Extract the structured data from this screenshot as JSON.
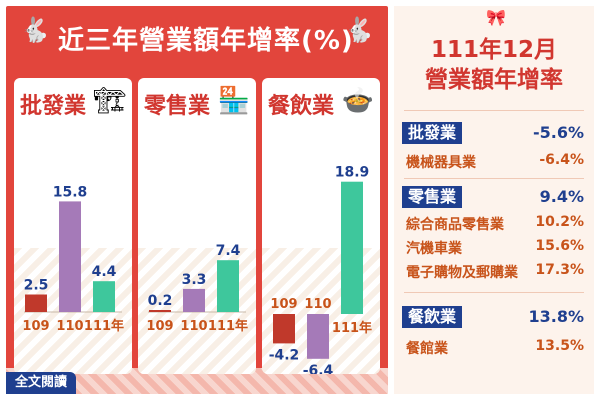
{
  "header": {
    "title": "近三年營業額年增率(%)",
    "left_icon": "rabbit-icon",
    "right_icon": "rabbit-icon"
  },
  "chart_data": [
    {
      "type": "bar",
      "title": "批發業",
      "categories": [
        "109",
        "110",
        "111年"
      ],
      "values": [
        2.5,
        15.8,
        4.4
      ],
      "colors": [
        "#c0392b",
        "#a57ab8",
        "#3ec79c"
      ]
    },
    {
      "type": "bar",
      "title": "零售業",
      "categories": [
        "109",
        "110",
        "111年"
      ],
      "values": [
        0.2,
        3.3,
        7.4
      ],
      "colors": [
        "#c0392b",
        "#a57ab8",
        "#3ec79c"
      ]
    },
    {
      "type": "bar",
      "title": "餐飲業",
      "categories": [
        "109",
        "110",
        "111年"
      ],
      "values": [
        -4.2,
        -6.4,
        18.9
      ],
      "colors": [
        "#c0392b",
        "#a57ab8",
        "#3ec79c"
      ]
    }
  ],
  "card_icons": [
    "forklift-icon",
    "storefront-icon",
    "food-bowl-icon"
  ],
  "button": {
    "label": "全文閱讀"
  },
  "right_panel": {
    "ribbon_icon": "ribbon-icon",
    "title_line1": "111年12月",
    "title_line2": "營業額年增率",
    "groups": [
      {
        "label": "批發業",
        "value": "-5.6%",
        "items": [
          {
            "label": "機械器具業",
            "value": "-6.4%"
          }
        ]
      },
      {
        "label": "零售業",
        "value": "9.4%",
        "items": [
          {
            "label": "綜合商品零售業",
            "value": "10.2%"
          },
          {
            "label": "汽機車業",
            "value": "15.6%"
          },
          {
            "label": "電子購物及郵購業",
            "value": "17.3%"
          }
        ]
      },
      {
        "label": "餐飲業",
        "value": "13.8%",
        "items": [
          {
            "label": "餐館業",
            "value": "13.5%"
          }
        ]
      }
    ]
  },
  "colors": {
    "panel_red": "#e2453c",
    "title_red": "#d1362f",
    "navy": "#1f3f8f",
    "orange_text": "#c8531a"
  }
}
